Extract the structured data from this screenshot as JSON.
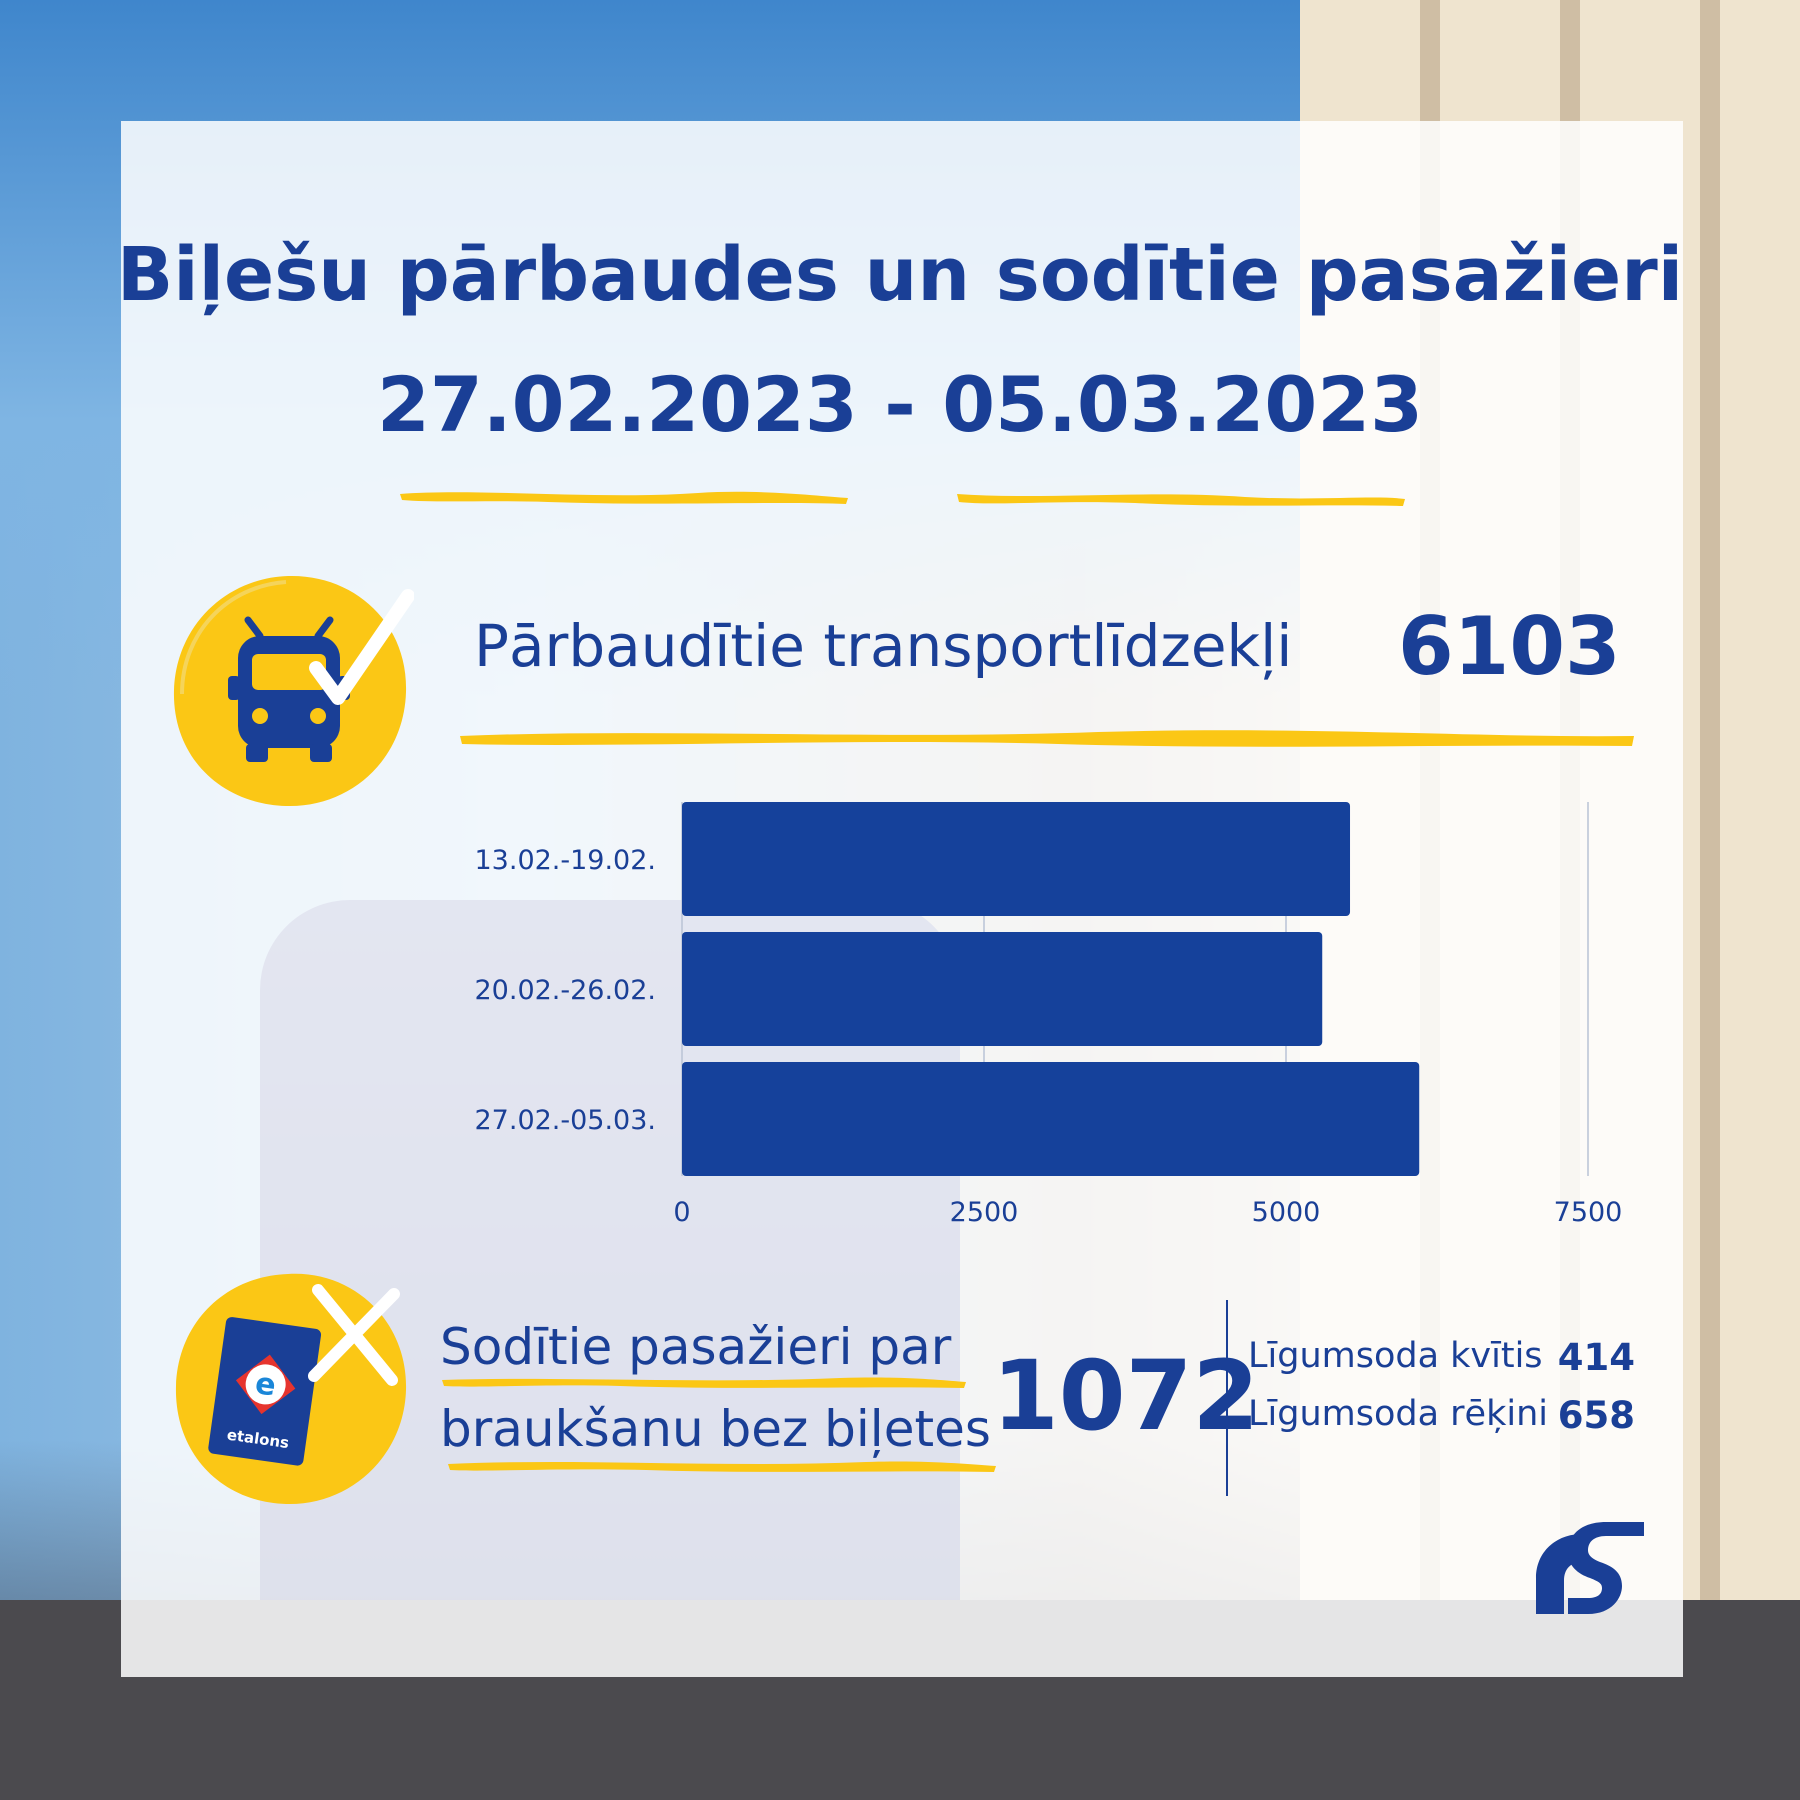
{
  "header": {
    "title_line1": "Biļešu pārbaudes un sodītie pasažieri",
    "title_line2": "27.02.2023 - 05.03.2023"
  },
  "vehicles": {
    "label": "Pārbaudītie transportlīdzekļi",
    "value": "6103",
    "icon": "trolleybus-check-icon"
  },
  "chart_data": {
    "type": "bar",
    "orientation": "horizontal",
    "categories": [
      "13.02.-19.02.",
      "20.02.-26.02.",
      "27.02.-05.03."
    ],
    "values": [
      5530,
      5300,
      6103
    ],
    "xticks": [
      "0",
      "2500",
      "5000",
      "7500"
    ],
    "xlim": [
      0,
      7500
    ],
    "grid": true,
    "bar_color": "#15419b"
  },
  "fined": {
    "label_line1": "Sodītie pasažieri par",
    "label_line2": "braukšanu bez biļetes",
    "value": "1072",
    "icon": "etalons-card-cross-icon",
    "card_text": "etalons",
    "breakdown": [
      {
        "label": "Līgumsoda kvītis",
        "value": "414"
      },
      {
        "label": "Līgumsoda rēķini",
        "value": "658"
      }
    ]
  },
  "colors": {
    "primary": "#1a3f96",
    "accent": "#fbc715",
    "panel": "#ffffff"
  },
  "logo": {
    "icon": "rigas-satiksme-logo-icon"
  }
}
